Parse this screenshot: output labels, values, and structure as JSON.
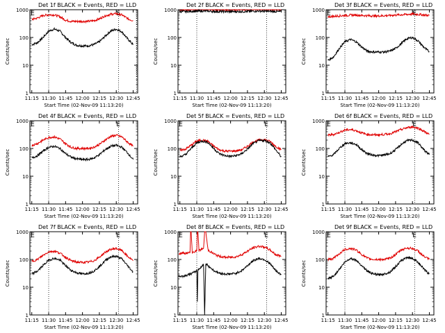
{
  "colors": {
    "events": "#000000",
    "lld": "#e00000",
    "axis": "#000000",
    "background": "#ffffff"
  },
  "chart_data": [
    {
      "type": "line",
      "title": "Det 1f BLACK = Events, RED = LLD",
      "ylabel": "Counts/sec",
      "xlabel": "Start Time (02-Nov-09 11:13:20)",
      "ylog": true,
      "ylim": [
        1,
        1000
      ],
      "y_ticks": [
        "1",
        "10",
        "100",
        "1000"
      ],
      "x_ticks": [
        "11:15",
        "11:30",
        "11:45",
        "12:00",
        "12:15",
        "12:30",
        "12:45"
      ],
      "x_tick_minutes": [
        15,
        30,
        45,
        60,
        75,
        90,
        105
      ],
      "xlim_minutes": [
        13.33,
        109
      ],
      "vlines_minutes": [
        30,
        92,
        108
      ],
      "markers": [
        {
          "text": "E",
          "x_minute": 14
        },
        {
          "text": "E",
          "x_minute": 90
        }
      ],
      "x": [
        15,
        20,
        25,
        30,
        35,
        40,
        45,
        50,
        55,
        60,
        65,
        70,
        75,
        80,
        85,
        90,
        95,
        100,
        105
      ],
      "series": [
        {
          "color": "#000000",
          "values": [
            55,
            65,
            100,
            170,
            200,
            170,
            100,
            65,
            52,
            50,
            50,
            55,
            70,
            110,
            170,
            200,
            160,
            90,
            55
          ]
        },
        {
          "color": "#e00000",
          "values": [
            450,
            500,
            620,
            660,
            650,
            560,
            420,
            380,
            380,
            380,
            380,
            400,
            470,
            600,
            680,
            720,
            650,
            480,
            400
          ]
        }
      ]
    },
    {
      "type": "line",
      "title": "Det 2f BLACK = Events, RED = LLD",
      "ylabel": "Counts/sec",
      "xlabel": "Start Time (02-Nov-09 11:13:20)",
      "ylog": true,
      "ylim": [
        1,
        1000
      ],
      "y_ticks": [
        "1",
        "10",
        "100",
        "1000"
      ],
      "x_ticks": [
        "11:15",
        "11:30",
        "11:45",
        "12:00",
        "12:15",
        "12:30",
        "12:45"
      ],
      "x_tick_minutes": [
        15,
        30,
        45,
        60,
        75,
        90,
        105
      ],
      "xlim_minutes": [
        13.33,
        109
      ],
      "vlines_minutes": [
        30,
        92
      ],
      "markers": [],
      "x": [
        15,
        20,
        25,
        30,
        35,
        40,
        45,
        50,
        55,
        60,
        65,
        70,
        75,
        80,
        85,
        90,
        95,
        100,
        105
      ],
      "series": [
        {
          "color": "#e00000",
          "values": [
            1000,
            1000,
            1030,
            1080,
            1100,
            1080,
            1030,
            1000,
            990,
            990,
            1000,
            1020,
            1060,
            1100,
            1120,
            1100,
            1060,
            1020,
            1000
          ]
        },
        {
          "color": "#000000",
          "values": [
            860,
            860,
            880,
            890,
            900,
            890,
            870,
            860,
            860,
            850,
            860,
            860,
            870,
            890,
            900,
            890,
            870,
            860,
            850
          ]
        }
      ]
    },
    {
      "type": "line",
      "title": "Det 3f BLACK = Events, RED = LLD",
      "ylabel": "Counts/sec",
      "xlabel": "Start Time (02-Nov-09 11:13:20)",
      "ylog": true,
      "ylim": [
        1,
        1000
      ],
      "y_ticks": [
        "1",
        "10",
        "100",
        "1000"
      ],
      "x_ticks": [
        "11:15",
        "11:30",
        "11:45",
        "12:00",
        "12:15",
        "12:30",
        "12:45"
      ],
      "x_tick_minutes": [
        15,
        30,
        45,
        60,
        75,
        90,
        105
      ],
      "xlim_minutes": [
        13.33,
        109
      ],
      "vlines_minutes": [
        30,
        92
      ],
      "markers": [
        {
          "text": "E",
          "x_minute": 14
        },
        {
          "text": "E",
          "x_minute": 90
        }
      ],
      "x": [
        15,
        20,
        25,
        30,
        35,
        40,
        45,
        50,
        55,
        60,
        65,
        70,
        75,
        80,
        85,
        90,
        95,
        100,
        105
      ],
      "series": [
        {
          "color": "#e00000",
          "values": [
            560,
            580,
            600,
            620,
            640,
            640,
            620,
            610,
            600,
            600,
            610,
            620,
            640,
            660,
            680,
            700,
            680,
            650,
            620
          ]
        },
        {
          "color": "#000000",
          "values": [
            15,
            20,
            40,
            70,
            85,
            70,
            45,
            32,
            30,
            30,
            30,
            32,
            40,
            60,
            90,
            100,
            75,
            45,
            30
          ]
        }
      ]
    },
    {
      "type": "line",
      "title": "Det 4f BLACK = Events, RED = LLD",
      "ylabel": "Counts/sec",
      "xlabel": "Start Time (02-Nov-09 11:13:20)",
      "ylog": true,
      "ylim": [
        1,
        1000
      ],
      "y_ticks": [
        "1",
        "10",
        "100",
        "1000"
      ],
      "x_ticks": [
        "11:15",
        "11:30",
        "11:45",
        "12:00",
        "12:15",
        "12:30",
        "12:45"
      ],
      "x_tick_minutes": [
        15,
        30,
        45,
        60,
        75,
        90,
        105
      ],
      "xlim_minutes": [
        13.33,
        109
      ],
      "vlines_minutes": [
        30,
        92
      ],
      "markers": [
        {
          "text": "E",
          "x_minute": 14
        },
        {
          "text": "E",
          "x_minute": 90
        }
      ],
      "x": [
        15,
        20,
        25,
        30,
        35,
        40,
        45,
        50,
        55,
        60,
        65,
        70,
        75,
        80,
        85,
        90,
        95,
        100,
        105
      ],
      "series": [
        {
          "color": "#e00000",
          "values": [
            130,
            150,
            200,
            250,
            260,
            220,
            150,
            110,
            100,
            100,
            100,
            110,
            140,
            200,
            270,
            300,
            260,
            170,
            120
          ]
        },
        {
          "color": "#000000",
          "values": [
            45,
            55,
            80,
            110,
            120,
            100,
            65,
            48,
            42,
            40,
            40,
            45,
            60,
            90,
            120,
            130,
            110,
            70,
            40
          ]
        }
      ]
    },
    {
      "type": "line",
      "title": "Det 5f BLACK = Events, RED = LLD",
      "ylabel": "Counts/sec",
      "xlabel": "Start Time (02-Nov-09 11:13:20)",
      "ylog": true,
      "ylim": [
        1,
        1000
      ],
      "y_ticks": [
        "1",
        "10",
        "100",
        "1000"
      ],
      "x_ticks": [
        "11:15",
        "11:30",
        "11:45",
        "12:00",
        "12:15",
        "12:30",
        "12:45"
      ],
      "x_tick_minutes": [
        15,
        30,
        45,
        60,
        75,
        90,
        105
      ],
      "xlim_minutes": [
        13.33,
        109
      ],
      "vlines_minutes": [
        30,
        92
      ],
      "markers": [
        {
          "text": "E",
          "x_minute": 14
        },
        {
          "text": "E",
          "x_minute": 90
        }
      ],
      "x": [
        15,
        20,
        25,
        30,
        35,
        40,
        45,
        50,
        55,
        60,
        65,
        70,
        75,
        80,
        85,
        90,
        95,
        100,
        105
      ],
      "series": [
        {
          "color": "#e00000",
          "values": [
            85,
            95,
            130,
            185,
            200,
            180,
            120,
            90,
            80,
            80,
            82,
            90,
            120,
            170,
            200,
            210,
            180,
            120,
            90
          ]
        },
        {
          "color": "#000000",
          "values": [
            50,
            60,
            100,
            160,
            185,
            165,
            100,
            65,
            55,
            52,
            55,
            65,
            95,
            150,
            190,
            195,
            160,
            90,
            50
          ]
        }
      ]
    },
    {
      "type": "line",
      "title": "Det 6f BLACK = Events, RED = LLD",
      "ylabel": "Counts/sec",
      "xlabel": "Start Time (02-Nov-09 11:13:20)",
      "ylog": true,
      "ylim": [
        1,
        1000
      ],
      "y_ticks": [
        "1",
        "10",
        "100",
        "1000"
      ],
      "x_ticks": [
        "11:15",
        "11:30",
        "11:45",
        "12:00",
        "12:15",
        "12:30",
        "12:45"
      ],
      "x_tick_minutes": [
        15,
        30,
        45,
        60,
        75,
        90,
        105
      ],
      "xlim_minutes": [
        13.33,
        109
      ],
      "vlines_minutes": [
        30,
        92
      ],
      "markers": [
        {
          "text": "E",
          "x_minute": 14
        },
        {
          "text": "E",
          "x_minute": 90
        }
      ],
      "x": [
        15,
        20,
        25,
        30,
        35,
        40,
        45,
        50,
        55,
        60,
        65,
        70,
        75,
        80,
        85,
        90,
        95,
        100,
        105
      ],
      "series": [
        {
          "color": "#e00000",
          "values": [
            300,
            320,
            380,
            460,
            480,
            440,
            360,
            320,
            310,
            310,
            320,
            340,
            400,
            480,
            560,
            600,
            540,
            420,
            320
          ]
        },
        {
          "color": "#000000",
          "values": [
            50,
            60,
            100,
            150,
            160,
            140,
            90,
            65,
            58,
            55,
            58,
            65,
            90,
            140,
            190,
            200,
            160,
            90,
            60
          ]
        }
      ]
    },
    {
      "type": "line",
      "title": "Det 7f BLACK = Events, RED = LLD",
      "ylabel": "Counts/sec",
      "xlabel": "Start Time (02-Nov-09 11:13:20)",
      "ylog": true,
      "ylim": [
        1,
        1000
      ],
      "y_ticks": [
        "1",
        "10",
        "100",
        "1000"
      ],
      "x_ticks": [
        "11:15",
        "11:30",
        "11:45",
        "12:00",
        "12:15",
        "12:30",
        "12:45"
      ],
      "x_tick_minutes": [
        15,
        30,
        45,
        60,
        75,
        90,
        105
      ],
      "xlim_minutes": [
        13.33,
        109
      ],
      "vlines_minutes": [
        30,
        92
      ],
      "markers": [
        {
          "text": "E",
          "x_minute": 14
        },
        {
          "text": "E",
          "x_minute": 90
        }
      ],
      "x": [
        15,
        20,
        25,
        30,
        35,
        40,
        45,
        50,
        55,
        60,
        65,
        70,
        75,
        80,
        85,
        90,
        95,
        100,
        105
      ],
      "series": [
        {
          "color": "#e00000",
          "values": [
            85,
            100,
            140,
            190,
            200,
            170,
            120,
            90,
            80,
            78,
            80,
            90,
            120,
            180,
            230,
            250,
            210,
            130,
            90
          ]
        },
        {
          "color": "#000000",
          "values": [
            30,
            38,
            60,
            95,
            110,
            95,
            60,
            40,
            33,
            30,
            32,
            38,
            55,
            90,
            125,
            130,
            105,
            60,
            35
          ]
        }
      ]
    },
    {
      "type": "line",
      "title": "Det 8f BLACK = Events, RED = LLD",
      "ylabel": "Counts/sec",
      "xlabel": "Start Time (02-Nov-09 11:13:20)",
      "ylog": true,
      "ylim": [
        1,
        1000
      ],
      "y_ticks": [
        "1",
        "10",
        "100",
        "1000"
      ],
      "x_ticks": [
        "11:15",
        "11:30",
        "11:45",
        "12:00",
        "12:15",
        "12:30",
        "12:45"
      ],
      "x_tick_minutes": [
        15,
        30,
        45,
        60,
        75,
        90,
        105
      ],
      "xlim_minutes": [
        13.33,
        109
      ],
      "vlines_minutes": [
        30,
        92
      ],
      "markers": [
        {
          "text": "E",
          "x_minute": 14
        },
        {
          "text": "E",
          "x_minute": 90
        }
      ],
      "x": [
        14,
        18,
        22,
        24,
        24.5,
        25,
        26,
        28,
        30,
        30.5,
        31,
        32,
        34,
        36,
        37,
        38,
        40,
        45,
        50,
        55,
        60,
        65,
        70,
        75,
        80,
        85,
        90,
        95,
        100,
        105
      ],
      "series": [
        {
          "color": "#e00000",
          "values": [
            160,
            170,
            170,
            180,
            1000,
            1000,
            180,
            190,
            200,
            1000,
            1000,
            210,
            230,
            250,
            1000,
            1000,
            220,
            160,
            130,
            120,
            120,
            125,
            150,
            200,
            260,
            300,
            280,
            220,
            150,
            130
          ]
        },
        {
          "color": "#000000",
          "values": [
            25,
            25,
            28,
            30,
            30,
            30,
            32,
            35,
            40,
            3,
            42,
            45,
            55,
            65,
            1,
            70,
            60,
            40,
            32,
            30,
            30,
            32,
            40,
            60,
            90,
            110,
            100,
            70,
            40,
            28
          ]
        }
      ]
    },
    {
      "type": "line",
      "title": "Det 9f BLACK = Events, RED = LLD",
      "ylabel": "Counts/sec",
      "xlabel": "Start Time (02-Nov-09 11:13:20)",
      "ylog": true,
      "ylim": [
        1,
        1000
      ],
      "y_ticks": [
        "1",
        "10",
        "100",
        "1000"
      ],
      "x_ticks": [
        "11:15",
        "11:30",
        "11:45",
        "12:00",
        "12:15",
        "12:30",
        "12:45"
      ],
      "x_tick_minutes": [
        15,
        30,
        45,
        60,
        75,
        90,
        105
      ],
      "xlim_minutes": [
        13.33,
        109
      ],
      "vlines_minutes": [
        30,
        92
      ],
      "markers": [
        {
          "text": "E",
          "x_minute": 14
        },
        {
          "text": "E",
          "x_minute": 90
        }
      ],
      "x": [
        15,
        20,
        25,
        30,
        35,
        40,
        45,
        50,
        55,
        60,
        65,
        70,
        75,
        80,
        85,
        90,
        95,
        100,
        105
      ],
      "series": [
        {
          "color": "#e00000",
          "values": [
            100,
            110,
            160,
            230,
            250,
            220,
            150,
            110,
            100,
            100,
            100,
            110,
            150,
            220,
            260,
            250,
            200,
            130,
            100
          ]
        },
        {
          "color": "#000000",
          "values": [
            20,
            25,
            45,
            80,
            110,
            95,
            60,
            38,
            30,
            28,
            30,
            35,
            55,
            90,
            120,
            110,
            80,
            45,
            30
          ]
        }
      ]
    }
  ]
}
